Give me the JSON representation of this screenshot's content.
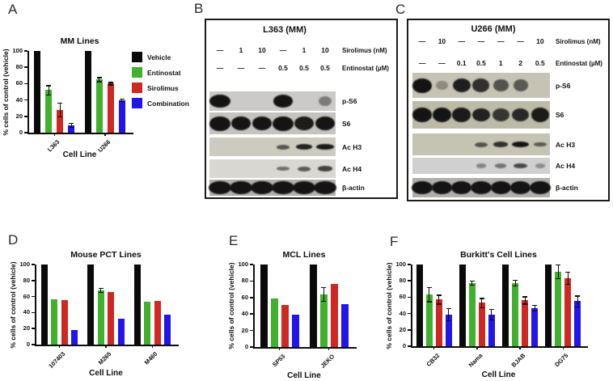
{
  "panels": {
    "a": "A",
    "b": "B",
    "c": "C",
    "d": "D",
    "e": "E",
    "f": "F"
  },
  "colors": {
    "vehicle": "#0a0a0a",
    "entinostat": "#3fb12c",
    "sirolimus": "#cf2823",
    "combination": "#2114ec",
    "axis": "#0d0d0d"
  },
  "legend": {
    "items": [
      {
        "label": "Vehicle",
        "key": "vehicle"
      },
      {
        "label": "Entinostat",
        "key": "entinostat"
      },
      {
        "label": "Sirolimus",
        "key": "sirolimus"
      },
      {
        "label": "Combination",
        "key": "combination"
      }
    ]
  },
  "chart_data": [
    {
      "id": "A",
      "type": "bar",
      "title": "MM Lines",
      "categories": [
        "L363",
        "U266"
      ],
      "series": [
        {
          "name": "Vehicle",
          "color": "vehicle",
          "values": [
            100,
            100
          ],
          "errors": [
            0,
            0
          ]
        },
        {
          "name": "Entinostat",
          "color": "entinostat",
          "values": [
            52,
            65
          ],
          "errors": [
            5,
            2
          ]
        },
        {
          "name": "Sirolimus",
          "color": "sirolimus",
          "values": [
            28,
            60
          ],
          "errors": [
            8,
            1
          ]
        },
        {
          "name": "Combination",
          "color": "combination",
          "values": [
            9,
            40
          ],
          "errors": [
            2,
            1
          ]
        }
      ],
      "ylabel": "% cells of control (vehicle)",
      "xlabel": "Cell Line",
      "ylim": [
        0,
        100
      ],
      "yticks": [
        0,
        20,
        40,
        60,
        80,
        100
      ],
      "grid": false,
      "legend_position": "right"
    },
    {
      "id": "D",
      "type": "bar",
      "title": "Mouse PCT Lines",
      "categories": [
        "107403",
        "M265",
        "M460"
      ],
      "series": [
        {
          "name": "Vehicle",
          "color": "vehicle",
          "values": [
            100,
            100,
            100
          ],
          "errors": [
            0,
            0,
            0
          ]
        },
        {
          "name": "Entinostat",
          "color": "entinostat",
          "values": [
            57,
            68,
            54
          ],
          "errors": [
            0,
            2,
            0
          ]
        },
        {
          "name": "Sirolimus",
          "color": "sirolimus",
          "values": [
            56,
            66,
            55
          ],
          "errors": [
            0,
            0,
            0
          ]
        },
        {
          "name": "Combination",
          "color": "combination",
          "values": [
            18,
            32,
            37
          ],
          "errors": [
            0,
            0,
            0
          ]
        }
      ],
      "ylabel": "% cells of control (vehicle)",
      "xlabel": "Cell Line",
      "ylim": [
        0,
        100
      ],
      "yticks": [
        0,
        20,
        40,
        60,
        80,
        100
      ],
      "grid": false,
      "legend_position": "none"
    },
    {
      "id": "E",
      "type": "bar",
      "title": "MCL Lines",
      "categories": [
        "SP53",
        "JEKO"
      ],
      "series": [
        {
          "name": "Vehicle",
          "color": "vehicle",
          "values": [
            100,
            100
          ],
          "errors": [
            0,
            0
          ]
        },
        {
          "name": "Entinostat",
          "color": "entinostat",
          "values": [
            59,
            64
          ],
          "errors": [
            0,
            8
          ]
        },
        {
          "name": "Sirolimus",
          "color": "sirolimus",
          "values": [
            51,
            76
          ],
          "errors": [
            0,
            0
          ]
        },
        {
          "name": "Combination",
          "color": "combination",
          "values": [
            39,
            52
          ],
          "errors": [
            0,
            0
          ]
        }
      ],
      "ylabel": "% cells of control (vehicle)",
      "xlabel": "Cell Line",
      "ylim": [
        0,
        100
      ],
      "yticks": [
        0,
        20,
        40,
        60,
        80,
        100
      ],
      "grid": false,
      "legend_position": "none"
    },
    {
      "id": "F",
      "type": "bar",
      "title": "Burkitt's Cell Lines",
      "categories": [
        "CB32",
        "Nama",
        "BJAB",
        "DG75"
      ],
      "series": [
        {
          "name": "Vehicle",
          "color": "vehicle",
          "values": [
            100,
            100,
            100,
            100
          ],
          "errors": [
            0,
            0,
            0,
            0
          ]
        },
        {
          "name": "Entinostat",
          "color": "entinostat",
          "values": [
            63,
            77,
            77,
            91
          ],
          "errors": [
            8,
            2,
            3,
            8
          ]
        },
        {
          "name": "Sirolimus",
          "color": "sirolimus",
          "values": [
            57,
            53,
            56,
            83
          ],
          "errors": [
            5,
            5,
            4,
            7
          ]
        },
        {
          "name": "Combination",
          "color": "combination",
          "values": [
            39,
            39,
            47,
            55
          ],
          "errors": [
            7,
            6,
            3,
            6
          ]
        }
      ],
      "ylabel": "% cells of control (vehicle)",
      "xlabel": "Cell Line",
      "ylim": [
        0,
        100
      ],
      "yticks": [
        0,
        20,
        40,
        60,
        80,
        100
      ],
      "grid": false,
      "legend_position": "none"
    }
  ],
  "blots": [
    {
      "id": "B",
      "title": "L363 (MM)",
      "lanes": 6,
      "treatments": [
        {
          "label": "Sirolimus (nM)",
          "values": [
            "—",
            "1",
            "10",
            "—",
            "1",
            "10"
          ]
        },
        {
          "label": "Entinostat (µM)",
          "values": [
            "—",
            "—",
            "—",
            "0.5",
            "0.5",
            "0.5"
          ]
        }
      ],
      "rows": [
        {
          "label": "p-S6",
          "style": "blob",
          "bg": "#cbcac8",
          "bands": [
            1,
            0,
            0,
            0.95,
            0,
            0.22
          ]
        },
        {
          "label": "S6",
          "style": "blob",
          "bg": "#c5c3be",
          "bands": [
            1,
            0.95,
            0.95,
            1,
            0.9,
            0.95
          ]
        },
        {
          "label": "Ac H3",
          "style": "thin",
          "bg": "#cdcabf",
          "bands": [
            0,
            0,
            0,
            0.5,
            0.85,
            0.9
          ]
        },
        {
          "label": "Ac H4",
          "style": "thin",
          "bg": "#d9d7d1",
          "bands": [
            0,
            0,
            0,
            0.35,
            0.5,
            0.65
          ]
        },
        {
          "label": "β-actin",
          "style": "heavy",
          "bg": "#b2b0ab",
          "bands": [
            1,
            1,
            1,
            1,
            1,
            1
          ]
        }
      ]
    },
    {
      "id": "C",
      "title": "U266 (MM)",
      "lanes": 7,
      "treatments": [
        {
          "label": "Sirolimus (nM)",
          "values": [
            "—",
            "10",
            "—",
            "—",
            "—",
            "—",
            "10"
          ]
        },
        {
          "label": "Entinostat (µM)",
          "values": [
            "—",
            "—",
            "0.1",
            "0.5",
            "1",
            "2",
            "0.5"
          ]
        }
      ],
      "rows": [
        {
          "label": "p-S6",
          "style": "blob",
          "bg": "#c6c3b4",
          "bands": [
            1,
            0.08,
            0.88,
            0.75,
            0.5,
            0.45,
            0
          ]
        },
        {
          "label": "S6",
          "style": "blob",
          "bg": "#bdbaa8",
          "bands": [
            1,
            0.95,
            0.9,
            0.85,
            0.7,
            0.8,
            0.9
          ]
        },
        {
          "label": "Ac H3",
          "style": "thin",
          "bg": "#c6c3b2",
          "bands": [
            0,
            0,
            0,
            0.5,
            0.75,
            1,
            0.45
          ]
        },
        {
          "label": "Ac H4",
          "style": "thin",
          "bg": "#d0d0d0",
          "bands": [
            0,
            0,
            0,
            0.18,
            0.3,
            0.6,
            0.12
          ]
        },
        {
          "label": "β-actin",
          "style": "heavy",
          "bg": "#b0afaa",
          "bands": [
            1,
            1,
            1,
            1,
            1,
            1,
            1
          ]
        }
      ]
    }
  ]
}
